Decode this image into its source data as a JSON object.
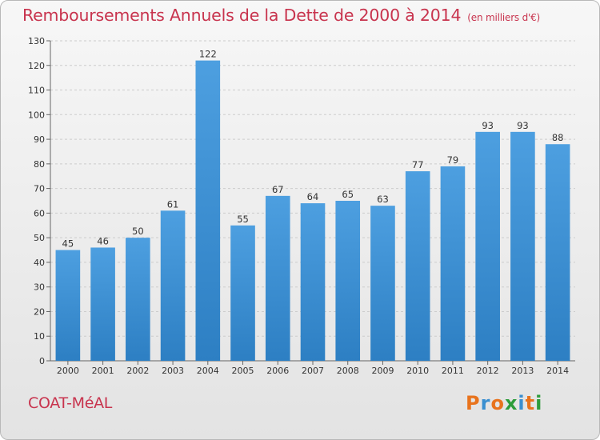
{
  "title": "Remboursements Annuels de la Dette de 2000 à 2014",
  "subtitle": "(en milliers d'€)",
  "commune": "COAT-MéAL",
  "logo_text": "Proxiti",
  "colors": {
    "bar": "#4d9fe0",
    "bar_dark": "#2d7fc3",
    "title": "#c8344e",
    "grid": "#cccccc"
  },
  "chart_data": {
    "type": "bar",
    "title": "Remboursements Annuels de la Dette de 2000 à 2014",
    "xlabel": "",
    "ylabel": "",
    "ylim": [
      0,
      130
    ],
    "yticks": [
      0,
      10,
      20,
      30,
      40,
      50,
      60,
      70,
      80,
      90,
      100,
      110,
      120,
      130
    ],
    "categories": [
      "2000",
      "2001",
      "2002",
      "2003",
      "2004",
      "2005",
      "2006",
      "2007",
      "2008",
      "2009",
      "2010",
      "2011",
      "2012",
      "2013",
      "2014"
    ],
    "values": [
      45,
      46,
      50,
      61,
      122,
      55,
      67,
      64,
      65,
      63,
      77,
      79,
      93,
      93,
      88
    ]
  }
}
